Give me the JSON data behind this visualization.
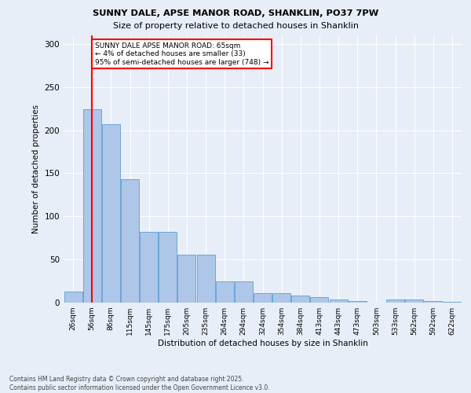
{
  "title1": "SUNNY DALE, APSE MANOR ROAD, SHANKLIN, PO37 7PW",
  "title2": "Size of property relative to detached houses in Shanklin",
  "xlabel": "Distribution of detached houses by size in Shanklin",
  "ylabel": "Number of detached properties",
  "categories": [
    "26sqm",
    "56sqm",
    "86sqm",
    "115sqm",
    "145sqm",
    "175sqm",
    "205sqm",
    "235sqm",
    "264sqm",
    "294sqm",
    "324sqm",
    "354sqm",
    "384sqm",
    "413sqm",
    "443sqm",
    "473sqm",
    "503sqm",
    "533sqm",
    "562sqm",
    "592sqm",
    "622sqm"
  ],
  "bar_values": [
    13,
    224,
    207,
    143,
    82,
    82,
    56,
    56,
    25,
    25,
    11,
    11,
    8,
    6,
    4,
    2,
    0,
    4,
    4,
    2,
    1
  ],
  "bar_color": "#aec6e8",
  "bar_edge_color": "#5a9fd4",
  "vline_index": 1.0,
  "vline_color": "red",
  "annotation_text": "SUNNY DALE APSE MANOR ROAD: 65sqm\n← 4% of detached houses are smaller (33)\n95% of semi-detached houses are larger (748) →",
  "annotation_box_facecolor": "white",
  "annotation_box_edgecolor": "red",
  "footer_text": "Contains HM Land Registry data © Crown copyright and database right 2025.\nContains public sector information licensed under the Open Government Licence v3.0.",
  "bg_color": "#e8eef7",
  "ylim": [
    0,
    310
  ],
  "yticks": [
    0,
    50,
    100,
    150,
    200,
    250,
    300
  ]
}
